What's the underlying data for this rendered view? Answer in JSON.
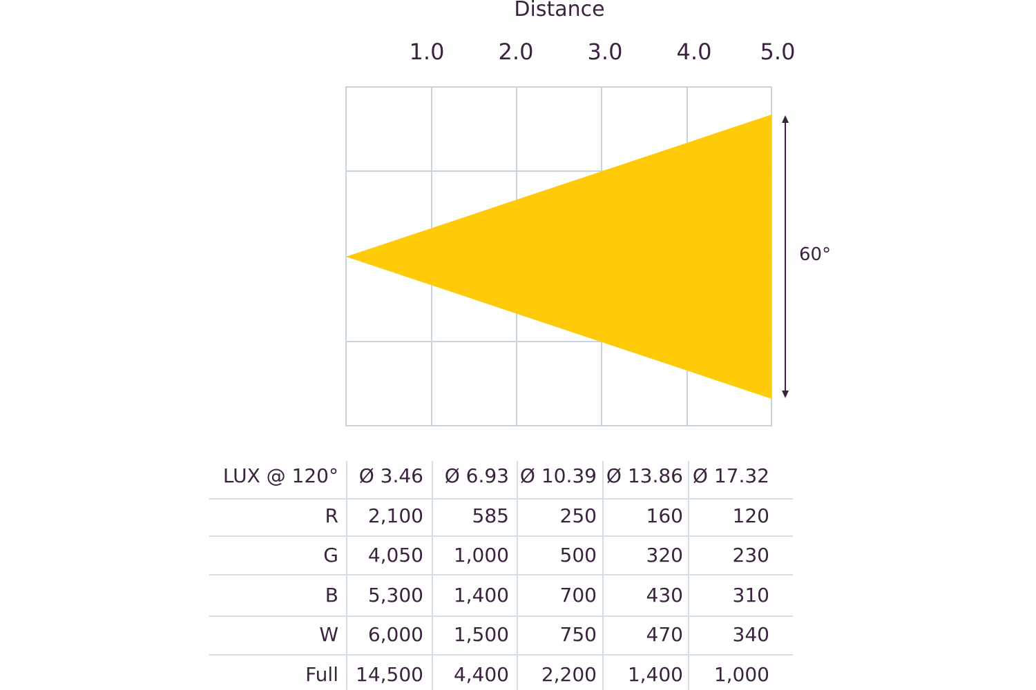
{
  "diagram": {
    "axis_title": "Distance",
    "distance_ticks": [
      "1.0",
      "2.0",
      "3.0",
      "4.0",
      "5.0"
    ],
    "beam_angle_label": "60°",
    "beam_color": "#ffc800",
    "grid_color": "#c9d4dd",
    "text_color": "#3b2340"
  },
  "table": {
    "header": [
      "LUX @ 120°",
      "Ø 3.46",
      "Ø 6.93",
      "Ø 10.39",
      "Ø 13.86",
      "Ø 17.32"
    ],
    "rows": [
      [
        "R",
        "2,100",
        "585",
        "250",
        "160",
        "120"
      ],
      [
        "G",
        "4,050",
        "1,000",
        "500",
        "320",
        "230"
      ],
      [
        "B",
        "5,300",
        "1,400",
        "700",
        "430",
        "310"
      ],
      [
        "W",
        "6,000",
        "1,500",
        "750",
        "470",
        "340"
      ],
      [
        "Full",
        "14,500",
        "4,400",
        "2,200",
        "1,400",
        "1,000"
      ]
    ]
  }
}
